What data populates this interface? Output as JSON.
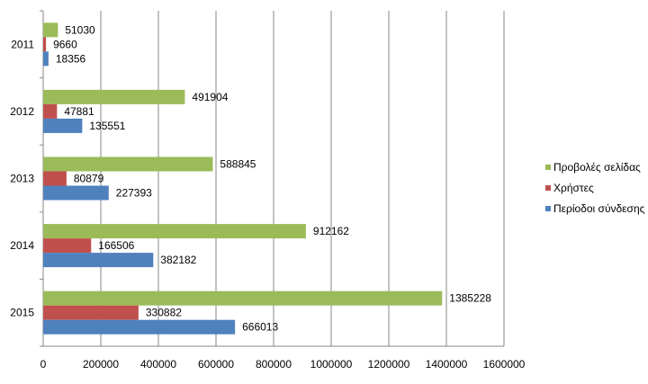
{
  "chart_data": {
    "type": "bar",
    "orientation": "horizontal",
    "categories": [
      "2011",
      "2012",
      "2013",
      "2014",
      "2015"
    ],
    "series": [
      {
        "name": "Προβολές σελίδας",
        "color": "#9bbb59",
        "values": [
          51030,
          491904,
          588845,
          912162,
          1385228
        ]
      },
      {
        "name": "Χρήστες",
        "color": "#c0504d",
        "values": [
          9660,
          47881,
          80879,
          166506,
          330882
        ]
      },
      {
        "name": "Περίοδοι σύνδεσης",
        "color": "#4f81bd",
        "values": [
          18356,
          135551,
          227393,
          382182,
          666013
        ]
      }
    ],
    "xlim": [
      0,
      1600000
    ],
    "xticks": [
      "0",
      "200000",
      "400000",
      "600000",
      "800000",
      "1000000",
      "1200000",
      "1400000",
      "1600000"
    ],
    "grid": true,
    "data_labels": true,
    "legend": "right"
  }
}
